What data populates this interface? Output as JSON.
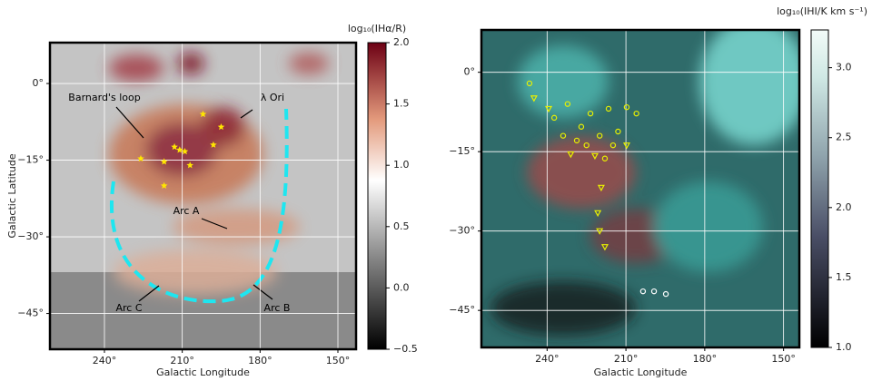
{
  "chart_data": [
    {
      "type": "map",
      "xlabel": "Galactic Longitude",
      "ylabel": "Galactic Latitude",
      "xlim": [
        261,
        143
      ],
      "ylim": [
        -52,
        8
      ],
      "xticks": [
        {
          "value": 240,
          "label": "240°"
        },
        {
          "value": 210,
          "label": "210°"
        },
        {
          "value": 180,
          "label": "180°"
        },
        {
          "value": 150,
          "label": "150°"
        }
      ],
      "yticks": [
        {
          "value": 0,
          "label": "0°"
        },
        {
          "value": -15,
          "label": "−15°"
        },
        {
          "value": -30,
          "label": "−30°"
        },
        {
          "value": -45,
          "label": "−45°"
        }
      ],
      "grid": true,
      "colorbar": {
        "label": "log₁₀(IHα/R)",
        "clim": [
          -0.5,
          2
        ],
        "ticks": [
          {
            "value": 2,
            "label": "2.0"
          },
          {
            "value": 1.5,
            "label": "1.5"
          },
          {
            "value": 1,
            "label": "1.0"
          },
          {
            "value": 0.5,
            "label": "0.5"
          },
          {
            "value": 0,
            "label": "0.0"
          },
          {
            "value": -0.5,
            "label": "−0.5"
          }
        ]
      },
      "annotations": [
        "Barnard's loop",
        "λ Ori",
        "Arc A",
        "Arc B",
        "Arc C"
      ],
      "series": [
        {
          "marker": "star",
          "color": "#ffe600",
          "x": [
            202,
            195,
            198,
            213,
            211,
            209,
            217,
            226,
            207,
            217
          ],
          "y": [
            -6,
            -8.5,
            -12,
            -12.4,
            -13,
            -13.3,
            -15.3,
            -14.7,
            -16,
            -20
          ]
        }
      ]
    },
    {
      "type": "map",
      "xlabel": "Galactic Longitude",
      "xlim": [
        265,
        144
      ],
      "ylim": [
        -52,
        8
      ],
      "xticks": [
        {
          "value": 240,
          "label": "240°"
        },
        {
          "value": 210,
          "label": "210°"
        },
        {
          "value": 180,
          "label": "180°"
        },
        {
          "value": 150,
          "label": "150°"
        }
      ],
      "yticks": [
        {
          "value": 0,
          "label": "0°"
        },
        {
          "value": -15,
          "label": "−15°"
        },
        {
          "value": -30,
          "label": "−30°"
        },
        {
          "value": -45,
          "label": "−45°"
        }
      ],
      "grid": true,
      "colorbar": {
        "label": "log₁₀(IHI/K km s⁻¹)",
        "clim": [
          1,
          3.27
        ],
        "ticks": [
          {
            "value": 3,
            "label": "3.0"
          },
          {
            "value": 2.5,
            "label": "2.5"
          },
          {
            "value": 2,
            "label": "2.0"
          },
          {
            "value": 1.5,
            "label": "1.5"
          },
          {
            "value": 1,
            "label": "1.0"
          }
        ]
      },
      "series": [
        {
          "marker": "circle",
          "color": "#e8f000",
          "x": [
            246.7,
            237.3,
            232.2,
            227,
            223.5,
            220,
            225,
            216.6,
            209.7,
            206,
            213,
            218,
            214.9,
            228.7,
            233.9
          ],
          "y": [
            -2.1,
            -8.6,
            -6,
            -10.3,
            -7.8,
            -12,
            -13.8,
            -6.9,
            -6.6,
            -7.8,
            -11.2,
            -16.3,
            -13.8,
            -12.9,
            -12
          ]
        },
        {
          "marker": "triangle",
          "color": "#e8f000",
          "x": [
            245,
            239.4,
            231,
            221.8,
            209.7,
            219.4,
            220.7,
            220,
            218
          ],
          "y": [
            -4.9,
            -6.9,
            -15.5,
            -15.8,
            -13.8,
            -21.8,
            -26.6,
            -30,
            -33
          ]
        },
        {
          "marker": "circle",
          "color": "#ffffff",
          "x": [
            203.5,
            199.3,
            194.8
          ],
          "y": [
            -41.4,
            -41.4,
            -41.9
          ]
        }
      ]
    }
  ]
}
